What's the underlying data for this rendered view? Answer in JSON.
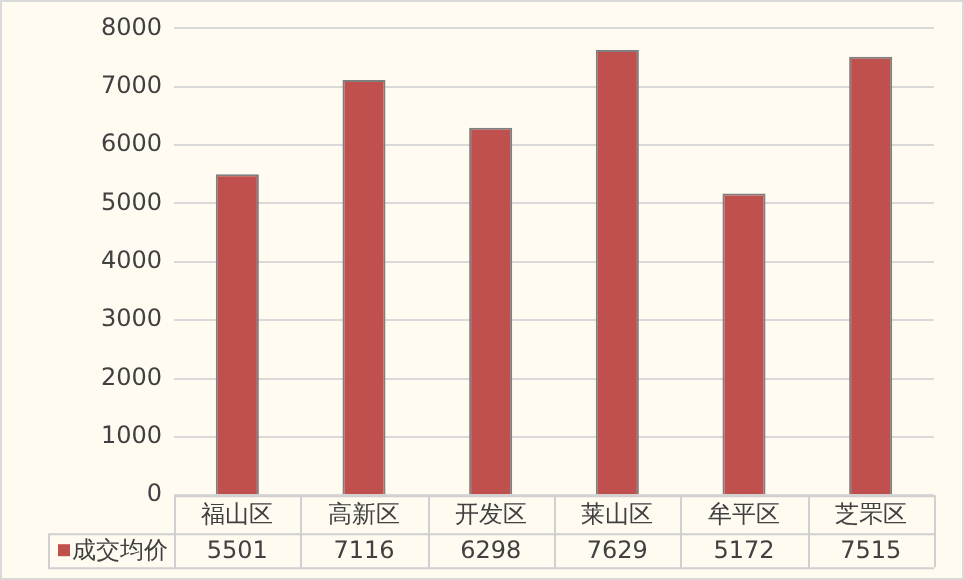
{
  "chart_data": {
    "type": "bar",
    "categories": [
      "福山区",
      "高新区",
      "开发区",
      "莱山区",
      "牟平区",
      "芝罘区"
    ],
    "series": [
      {
        "name": "成交均价",
        "color": "#c0504d",
        "values": [
          5501,
          7116,
          6298,
          7629,
          5172,
          7515
        ]
      }
    ],
    "ylim": [
      0,
      8000
    ],
    "yticks": [
      0,
      1000,
      2000,
      3000,
      4000,
      5000,
      6000,
      7000,
      8000
    ],
    "grid": "y",
    "legend": "bottom",
    "data_labels": true
  }
}
